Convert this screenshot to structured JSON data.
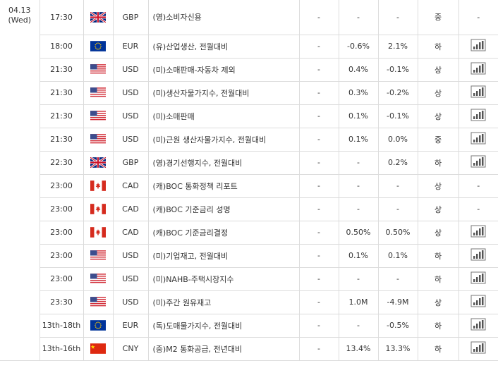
{
  "date": {
    "day": "04.13",
    "weekday": "(Wed)"
  },
  "rows": [
    {
      "time": "17:30",
      "flag": "gb-flag-icon",
      "currency": "GBP",
      "event": "(영)소비자신용",
      "prev": "-",
      "forecast": "-",
      "actual": "-",
      "importance": "중",
      "chart": "-"
    },
    {
      "time": "18:00",
      "flag": "eu-flag-icon",
      "currency": "EUR",
      "event": "(유)산업생산, 전월대비",
      "prev": "-",
      "forecast": "-0.6%",
      "actual": "2.1%",
      "importance": "하",
      "chart": "chart-icon"
    },
    {
      "time": "21:30",
      "flag": "us-flag-icon",
      "currency": "USD",
      "event": "(미)소매판매-자동차 제외",
      "prev": "-",
      "forecast": "0.4%",
      "actual": "-0.1%",
      "importance": "상",
      "chart": "chart-icon"
    },
    {
      "time": "21:30",
      "flag": "us-flag-icon",
      "currency": "USD",
      "event": "(미)생산자물가지수, 전월대비",
      "prev": "-",
      "forecast": "0.3%",
      "actual": "-0.2%",
      "importance": "상",
      "chart": "chart-icon"
    },
    {
      "time": "21:30",
      "flag": "us-flag-icon",
      "currency": "USD",
      "event": "(미)소매판매",
      "prev": "-",
      "forecast": "0.1%",
      "actual": "-0.1%",
      "importance": "상",
      "chart": "chart-icon"
    },
    {
      "time": "21:30",
      "flag": "us-flag-icon",
      "currency": "USD",
      "event": "(미)근원 생산자물가지수, 전월대비",
      "prev": "-",
      "forecast": "0.1%",
      "actual": "0.0%",
      "importance": "중",
      "chart": "chart-icon"
    },
    {
      "time": "22:30",
      "flag": "gb-flag-icon",
      "currency": "GBP",
      "event": "(영)경기선행지수, 전월대비",
      "prev": "-",
      "forecast": "-",
      "actual": "0.2%",
      "importance": "하",
      "chart": "chart-icon"
    },
    {
      "time": "23:00",
      "flag": "ca-flag-icon",
      "currency": "CAD",
      "event": "(캐)BOC 통화정책 리포트",
      "prev": "-",
      "forecast": "-",
      "actual": "-",
      "importance": "상",
      "chart": "-"
    },
    {
      "time": "23:00",
      "flag": "ca-flag-icon",
      "currency": "CAD",
      "event": "(캐)BOC 기준금리 성명",
      "prev": "-",
      "forecast": "-",
      "actual": "-",
      "importance": "상",
      "chart": "-"
    },
    {
      "time": "23:00",
      "flag": "ca-flag-icon",
      "currency": "CAD",
      "event": "(캐)BOC 기준금리결정",
      "prev": "-",
      "forecast": "0.50%",
      "actual": "0.50%",
      "importance": "상",
      "chart": "chart-icon"
    },
    {
      "time": "23:00",
      "flag": "us-flag-icon",
      "currency": "USD",
      "event": "(미)기업재고, 전월대비",
      "prev": "-",
      "forecast": "0.1%",
      "actual": "0.1%",
      "importance": "하",
      "chart": "chart-icon"
    },
    {
      "time": "23:00",
      "flag": "us-flag-icon",
      "currency": "USD",
      "event": "(미)NAHB-주택시장지수",
      "prev": "-",
      "forecast": "-",
      "actual": "-",
      "importance": "하",
      "chart": "chart-icon"
    },
    {
      "time": "23:30",
      "flag": "us-flag-icon",
      "currency": "USD",
      "event": "(미)주간 원유재고",
      "prev": "-",
      "forecast": "1.0M",
      "actual": "-4.9M",
      "importance": "상",
      "chart": "chart-icon"
    },
    {
      "time": "13th-18th",
      "flag": "eu-flag-icon",
      "currency": "EUR",
      "event": "(독)도매물가지수, 전월대비",
      "prev": "-",
      "forecast": "-",
      "actual": "-0.5%",
      "importance": "하",
      "chart": "chart-icon"
    },
    {
      "time": "13th-16th",
      "flag": "cn-flag-icon",
      "currency": "CNY",
      "event": "(중)M2 통화공급, 전년대비",
      "prev": "-",
      "forecast": "13.4%",
      "actual": "13.3%",
      "importance": "하",
      "chart": "chart-icon"
    }
  ]
}
